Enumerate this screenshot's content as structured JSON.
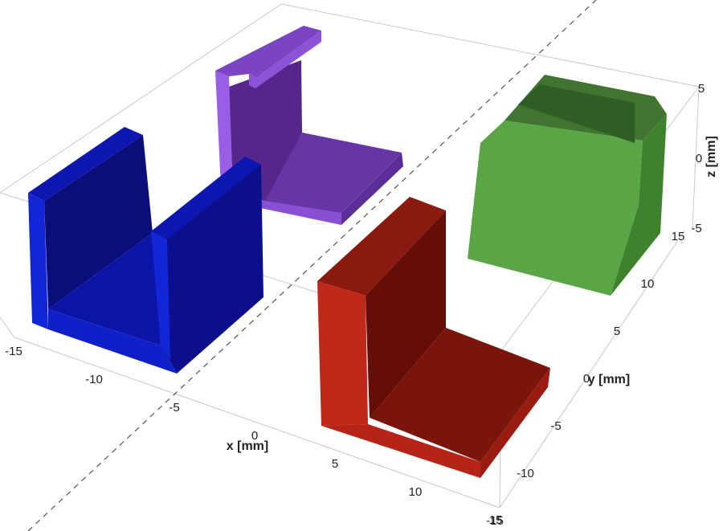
{
  "chart_data": {
    "type": "mesh3d",
    "xaxis_title": "x [mm]",
    "yaxis_title": "y [mm]",
    "zaxis_title": "z [mm]",
    "xlim": [
      -15,
      15
    ],
    "ylim": [
      -15,
      15
    ],
    "zlim": [
      -5,
      5
    ],
    "xticks": [
      -15,
      -10,
      -5,
      0,
      5,
      10,
      15
    ],
    "yticks": [
      -15,
      -10,
      -5,
      0,
      5,
      10,
      15
    ],
    "zticks": [
      -5,
      0,
      5
    ]
  }
}
